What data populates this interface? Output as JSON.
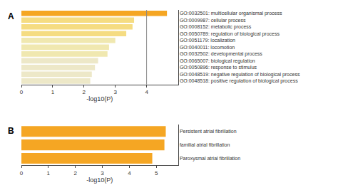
{
  "chart_data": [
    {
      "type": "bar",
      "orientation": "horizontal",
      "title": "A",
      "categories": [
        "GO:0032501: multicellular organismal process",
        "GO:0009987: cellular process",
        "GO:0008152: metabolic process",
        "GO:0050789: regulation of biological process",
        "GO:0051179: localization",
        "GO:0040011: locomotion",
        "GO:0032502: developmental process",
        "GO:0065007: biological regulation",
        "GO:0050896: response to stimulus",
        "GO:0048519: negative regulation of biological process",
        "GO:0048518: positive regulation of biological process"
      ],
      "values": [
        4.65,
        3.6,
        3.55,
        3.35,
        3.0,
        2.8,
        2.75,
        2.45,
        2.35,
        2.25,
        2.2
      ],
      "colors": [
        "#F5A623",
        "#F5DC82",
        "#F5DC82",
        "#F5DC82",
        "#F0E8B0",
        "#F0E8B0",
        "#F0E8B0",
        "#EDE8C8",
        "#EDE8C8",
        "#EDE8C8",
        "#EDE8C8"
      ],
      "xlabel": "-log10(P)",
      "xlim": [
        0,
        5
      ],
      "xticks": [
        0,
        1,
        2,
        3,
        4
      ],
      "vline": 4.0,
      "grid": false
    },
    {
      "type": "bar",
      "orientation": "horizontal",
      "title": "B",
      "categories": [
        "Persistent atrial fibrillation",
        "familial atrial fibrillation",
        "Paroxysmal atrial fibrillation"
      ],
      "values": [
        5.35,
        5.3,
        4.85
      ],
      "colors": [
        "#F5A623",
        "#F5A623",
        "#F5A623"
      ],
      "xlabel": "-log10(P)",
      "xlim": [
        0,
        5.8
      ],
      "xticks": [
        0,
        1,
        2,
        3,
        4,
        5
      ],
      "grid": false
    }
  ]
}
